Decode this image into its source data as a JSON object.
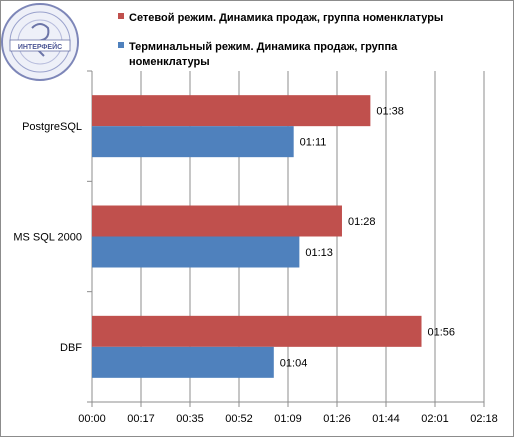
{
  "chart_data": {
    "type": "bar",
    "orientation": "horizontal",
    "categories": [
      "PostgreSQL",
      "MS SQL 2000",
      "DBF"
    ],
    "series": [
      {
        "name": "Сетевой режим. Динамика  продаж, группа  номенклатуры",
        "color": "#c0504d",
        "values": [
          98,
          88,
          116
        ],
        "labels": [
          "01:38",
          "01:28",
          "01:56"
        ]
      },
      {
        "name": "Терминальный  режим. Динамика  продаж, группа  номенклатуры",
        "color": "#4f81bd",
        "values": [
          71,
          73,
          64
        ],
        "labels": [
          "01:11",
          "01:13",
          "01:04"
        ]
      }
    ],
    "x_ticks": [
      "00:00",
      "00:17",
      "00:35",
      "00:52",
      "01:09",
      "01:26",
      "01:44",
      "02:01",
      "02:18"
    ],
    "x_tick_values": [
      0,
      17.25,
      34.5,
      51.75,
      69,
      86.25,
      103.5,
      120.75,
      138
    ],
    "xlim": [
      0,
      138
    ],
    "value_unit": "seconds",
    "grid": "vertical",
    "legend_position": "top",
    "title": "",
    "xlabel": "",
    "ylabel": ""
  },
  "logo": {
    "name": "stamp-logo-icon",
    "text": "ИНТЕРФЕЙС"
  }
}
